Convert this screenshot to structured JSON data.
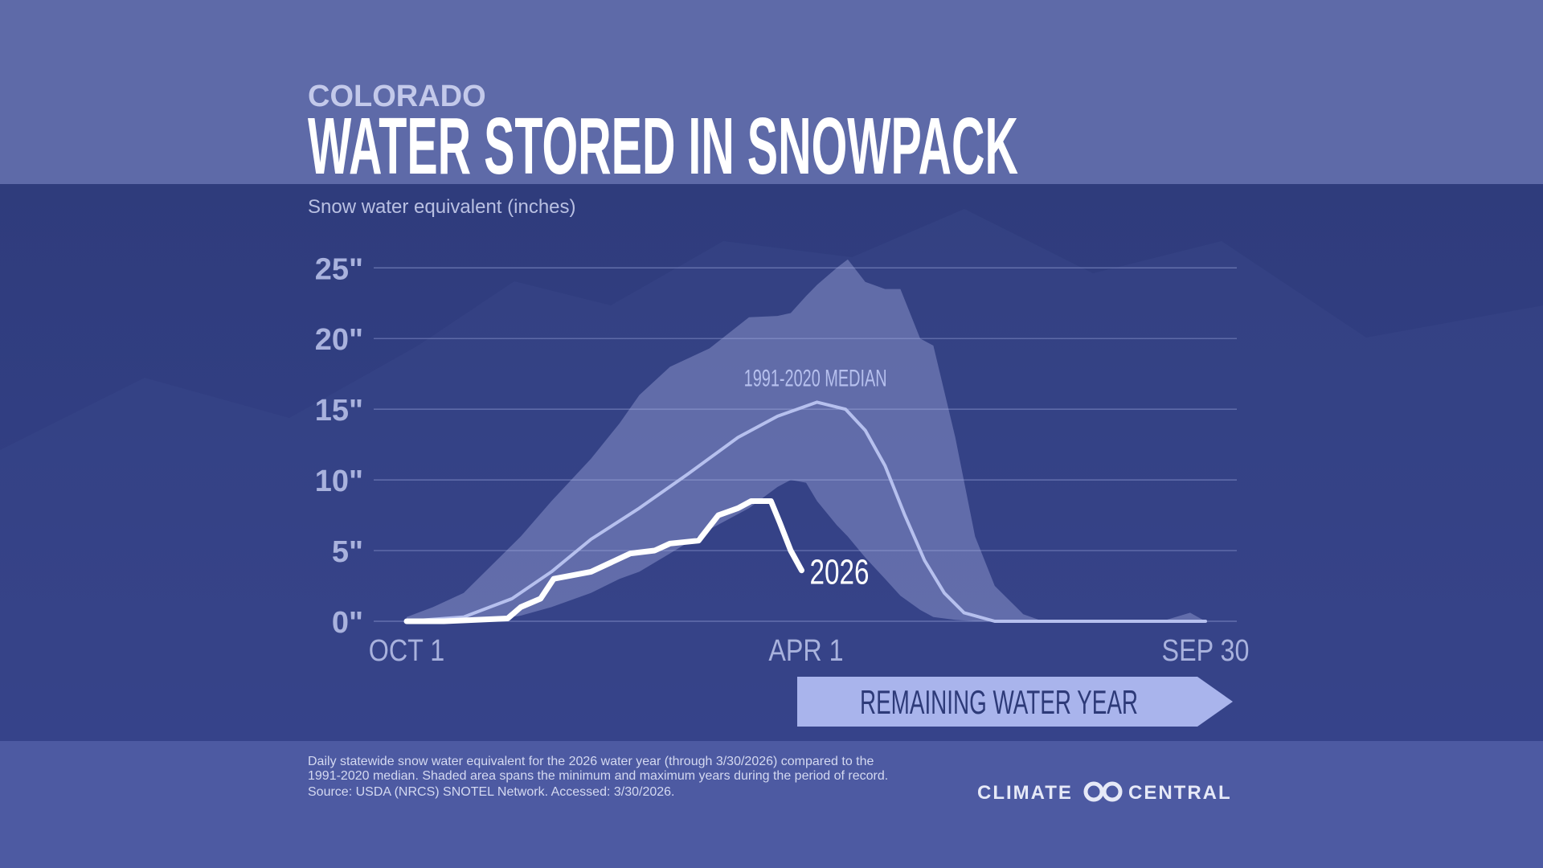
{
  "chart_data": {
    "type": "line",
    "supertitle": "COLORADO",
    "title": "WATER STORED IN SNOWPACK",
    "y_label": "Snow water equivalent (inches)",
    "xlim": [
      0,
      364
    ],
    "xticks": [
      {
        "value": 0,
        "label": "OCT 1"
      },
      {
        "value": 182,
        "label": "APR 1"
      },
      {
        "value": 364,
        "label": "SEP 30"
      }
    ],
    "ylim": [
      0,
      26
    ],
    "yticks": [
      {
        "value": 0,
        "label": "0\""
      },
      {
        "value": 5,
        "label": "5\""
      },
      {
        "value": 10,
        "label": "10\""
      },
      {
        "value": 15,
        "label": "15\""
      },
      {
        "value": 20,
        "label": "20\""
      },
      {
        "value": 25,
        "label": "25\""
      }
    ],
    "grid": true,
    "band": {
      "color": "#aab4e6",
      "x": [
        0,
        12,
        26,
        39,
        52,
        66,
        84,
        97,
        106,
        120,
        138,
        156,
        169,
        175,
        182,
        187,
        196,
        201,
        209,
        218,
        225,
        234,
        240,
        250,
        259,
        268,
        281,
        290,
        344,
        357,
        364
      ],
      "upper": [
        0.3,
        1,
        2,
        4,
        6,
        8.5,
        11.5,
        14,
        16,
        18,
        19.3,
        21.5,
        21.6,
        21.8,
        23,
        23.8,
        25,
        25.6,
        24,
        23.5,
        23.5,
        20,
        19.5,
        13,
        6,
        2.5,
        0.5,
        0,
        0,
        0.6,
        0
      ],
      "lower": [
        0,
        0,
        0,
        0.1,
        0.4,
        1,
        2,
        3,
        3.5,
        4.8,
        6.5,
        8,
        9.5,
        10,
        9.8,
        8.5,
        6.8,
        6,
        4.5,
        3,
        1.8,
        0.8,
        0.3,
        0.1,
        0,
        0,
        0,
        0,
        0,
        0,
        0
      ]
    },
    "series": [
      {
        "name": "1991-2020 MEDIAN",
        "color": "#b6c0ee",
        "x": [
          0,
          26,
          48,
          66,
          84,
          106,
          128,
          151,
          169,
          187,
          200,
          209,
          218,
          227,
          236,
          245,
          254,
          268,
          364
        ],
        "values": [
          0,
          0.3,
          1.6,
          3.5,
          5.8,
          8,
          10.4,
          13,
          14.5,
          15.5,
          15,
          13.5,
          11,
          7.5,
          4.3,
          2,
          0.6,
          0,
          0
        ]
      },
      {
        "name": "2026",
        "color": "#ffffff",
        "x": [
          0,
          17,
          46,
          52,
          61,
          67,
          84,
          102,
          113,
          120,
          133,
          142,
          151,
          157,
          166,
          170,
          175,
          180
        ],
        "values": [
          0,
          0,
          0.2,
          1,
          1.6,
          3,
          3.5,
          4.8,
          5,
          5.5,
          5.7,
          7.5,
          8,
          8.5,
          8.5,
          7,
          5,
          3.6
        ]
      }
    ],
    "remaining_label": "REMAINING WATER YEAR",
    "notes": [
      "Daily statewide snow water equivalent for the 2026 water year (through 3/30/2026) compared to the",
      "1991-2020 median. Shaded area spans the minimum and maximum years during the period of record.",
      "Source: USDA (NRCS) SNOTEL Network. Accessed: 3/30/2026."
    ],
    "logo": [
      "CLIMATE",
      "CENTRAL"
    ]
  }
}
